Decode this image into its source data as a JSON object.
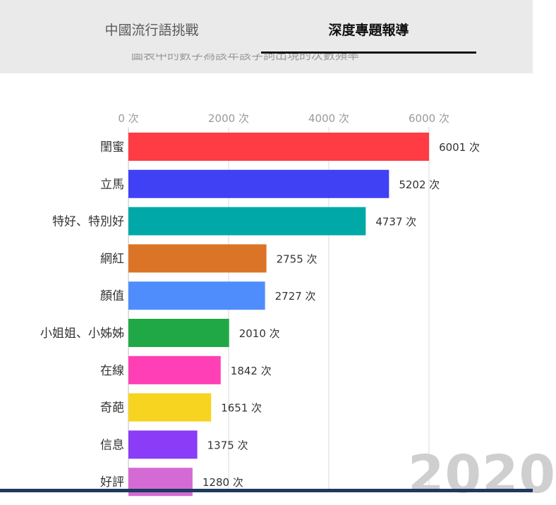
{
  "tabs": [
    {
      "label": "中國流行語挑戰",
      "active": false
    },
    {
      "label": "深度專題報導",
      "active": true
    }
  ],
  "subtitle": "圖表中的數字為該年該字詞出現的次數頻率",
  "year": "2020",
  "colors": {
    "tab_bg": "#eaeaea",
    "active_tab_text": "#111111",
    "gridline": "#d9d9d9",
    "year_text": "#cfcfcf"
  },
  "chart_data": {
    "type": "bar",
    "orientation": "horizontal",
    "title": "",
    "xlabel": "",
    "ylabel": "",
    "xlim": [
      0,
      6500
    ],
    "grid": true,
    "x_ticks": [
      {
        "value": 0,
        "label": "0 次"
      },
      {
        "value": 2000,
        "label": "2000 次"
      },
      {
        "value": 4000,
        "label": "4000 次"
      },
      {
        "value": 6000,
        "label": "6000 次"
      }
    ],
    "categories": [
      "閨蜜",
      "立馬",
      "特好、特別好",
      "網紅",
      "顏值",
      "小姐姐、小姊姊",
      "在線",
      "奇葩",
      "信息",
      "好評"
    ],
    "values": [
      6001,
      5202,
      4737,
      2755,
      2727,
      2010,
      1842,
      1651,
      1375,
      1280
    ],
    "value_labels": [
      "6001 次",
      "5202 次",
      "4737 次",
      "2755 次",
      "2727 次",
      "2010 次",
      "1842 次",
      "1651 次",
      "1375 次",
      "1280 次"
    ],
    "bar_colors": [
      "#ff3b44",
      "#4040f5",
      "#00a8a8",
      "#db7427",
      "#4f8dfd",
      "#1fa845",
      "#ff3fb5",
      "#f7d41f",
      "#8a3cf7",
      "#d46ad4"
    ]
  }
}
